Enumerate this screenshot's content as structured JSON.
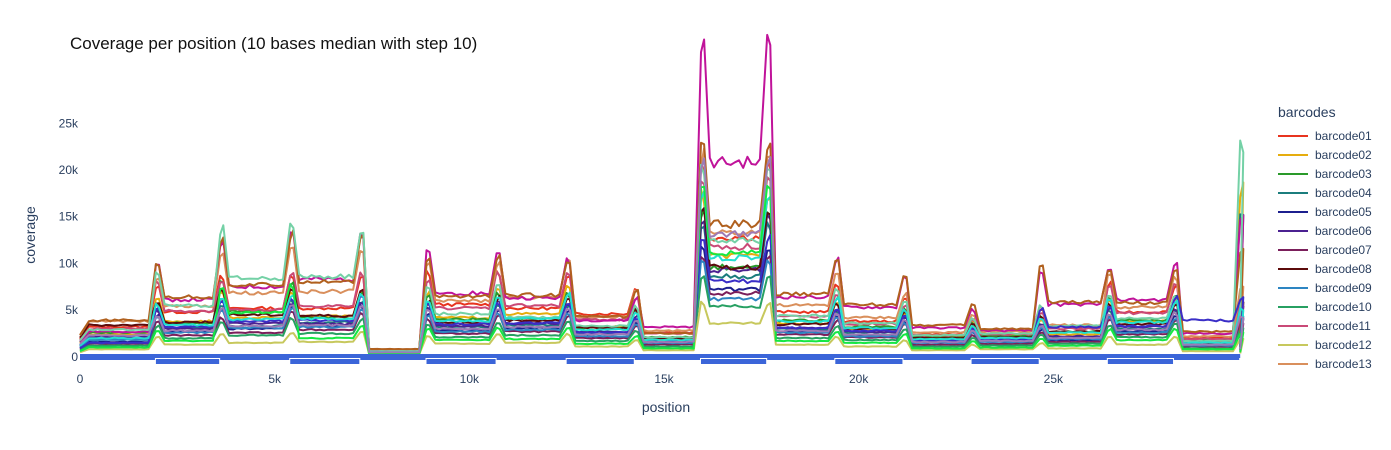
{
  "chart_data": {
    "type": "line",
    "title": "Coverage per position (10 bases median with step 10)",
    "xlabel": "position",
    "ylabel": "coverage",
    "xlim": [
      0,
      30000
    ],
    "ylim": [
      -1200,
      27500
    ],
    "x_ticks": [
      0,
      5000,
      10000,
      15000,
      20000,
      25000
    ],
    "x_tick_labels": [
      "0",
      "5k",
      "10k",
      "15k",
      "20k",
      "25k"
    ],
    "y_ticks": [
      0,
      5000,
      10000,
      15000,
      20000,
      25000
    ],
    "y_tick_labels": [
      "0",
      "5k",
      "10k",
      "15k",
      "20k",
      "25k"
    ],
    "legend_title": "barcodes",
    "legend_position": "right",
    "grid": false,
    "amplicon_breaks": [
      0,
      1950,
      3600,
      5400,
      7200,
      8900,
      10700,
      12500,
      14250,
      15950,
      17650,
      19400,
      21150,
      22900,
      24650,
      26400,
      28100,
      29800
    ],
    "series": [
      {
        "name": "barcode01",
        "color": "#e8341f",
        "segments": [
          3200,
          4800,
          5200,
          5200,
          700,
          5600,
          5200,
          4600,
          2600,
          12800,
          4800,
          3800,
          2400,
          2400,
          3200,
          4800,
          2000,
          3400
        ]
      },
      {
        "name": "barcode02",
        "color": "#e6ad0e",
        "segments": [
          2400,
          3800,
          4200,
          4300,
          600,
          4200,
          4600,
          3200,
          1900,
          10800,
          3600,
          2900,
          2200,
          2300,
          2400,
          3800,
          1600,
          11200
        ]
      },
      {
        "name": "barcode03",
        "color": "#2a9a2a",
        "segments": [
          2600,
          3600,
          4900,
          4200,
          650,
          4000,
          4100,
          3100,
          2100,
          9600,
          3900,
          3200,
          2100,
          2200,
          2700,
          3900,
          1800,
          3700
        ]
      },
      {
        "name": "barcode04",
        "color": "#1b7d7d",
        "segments": [
          1900,
          3100,
          3300,
          3700,
          500,
          3200,
          3400,
          2500,
          1700,
          8600,
          3000,
          2600,
          1700,
          1800,
          2100,
          3000,
          1400,
          9200
        ]
      },
      {
        "name": "barcode05",
        "color": "#1c1f8e",
        "segments": [
          1600,
          2700,
          3000,
          3300,
          450,
          2900,
          3100,
          2200,
          1500,
          7200,
          2700,
          2300,
          1500,
          1600,
          1800,
          2700,
          1200,
          2600
        ]
      },
      {
        "name": "barcode06",
        "color": "#4b2191",
        "segments": [
          2100,
          3000,
          3600,
          3500,
          500,
          3300,
          3600,
          2700,
          1800,
          9300,
          3100,
          2700,
          1800,
          1900,
          2200,
          3200,
          1500,
          3300
        ]
      },
      {
        "name": "barcode07",
        "color": "#7b1f5b",
        "segments": [
          1400,
          2300,
          2600,
          2900,
          400,
          2500,
          2700,
          2000,
          1300,
          6800,
          2400,
          2100,
          1300,
          1400,
          1600,
          2400,
          1100,
          2300
        ]
      },
      {
        "name": "barcode08",
        "color": "#5c0b0b",
        "segments": [
          3400,
          3700,
          4500,
          4400,
          650,
          3600,
          3900,
          3100,
          2000,
          9600,
          3500,
          3000,
          2000,
          2100,
          2700,
          3500,
          1500,
          3600
        ]
      },
      {
        "name": "barcode09",
        "color": "#2d85c2",
        "segments": [
          1800,
          2600,
          3100,
          3200,
          450,
          2700,
          2900,
          2200,
          1500,
          6200,
          2600,
          2200,
          1500,
          1600,
          1900,
          2600,
          1200,
          2800
        ]
      },
      {
        "name": "barcode10",
        "color": "#27a062",
        "segments": [
          1200,
          2000,
          2300,
          2500,
          380,
          2100,
          2300,
          1700,
          1100,
          5400,
          2000,
          1800,
          1100,
          1200,
          1400,
          2100,
          900,
          1900
        ]
      },
      {
        "name": "barcode11",
        "color": "#c94a77",
        "segments": [
          3000,
          4900,
          5000,
          5400,
          700,
          5200,
          5500,
          4000,
          2500,
          11800,
          4300,
          3500,
          2300,
          2400,
          3000,
          4700,
          1900,
          3800
        ]
      },
      {
        "name": "barcode12",
        "color": "#c7c85d",
        "segments": [
          800,
          1300,
          1500,
          1600,
          250,
          1400,
          1500,
          1100,
          700,
          3600,
          1300,
          1100,
          700,
          800,
          900,
          1300,
          600,
          1200
        ]
      },
      {
        "name": "barcode13",
        "color": "#d98f5c",
        "segments": [
          3800,
          5400,
          6800,
          7000,
          800,
          6000,
          6300,
          4300,
          2800,
          13400,
          5500,
          4200,
          2600,
          2700,
          3400,
          5300,
          2200,
          4500
        ]
      },
      {
        "name": "",
        "color": "#c0139a",
        "segments": [
          2700,
          6100,
          7500,
          8300,
          650,
          6800,
          6300,
          3900,
          3200,
          20800,
          6400,
          5300,
          3100,
          2800,
          5600,
          6100,
          2500,
          9600
        ]
      },
      {
        "name": "",
        "color": "#b0601e",
        "segments": [
          3900,
          6400,
          7700,
          8100,
          820,
          6500,
          6600,
          4300,
          2500,
          14200,
          6700,
          5600,
          3400,
          3000,
          5900,
          5800,
          2700,
          7000
        ]
      },
      {
        "name": "",
        "color": "#74d1a6",
        "segments": [
          2900,
          5500,
          8400,
          8600,
          600,
          4600,
          4200,
          3300,
          2100,
          12400,
          4400,
          3600,
          2300,
          2500,
          3300,
          4100,
          1700,
          14000
        ]
      },
      {
        "name": "",
        "color": "#3a2ec7",
        "segments": [
          1500,
          3200,
          3800,
          3900,
          450,
          3500,
          3600,
          2600,
          1600,
          8100,
          3100,
          2800,
          1700,
          1800,
          3200,
          3300,
          3900,
          3800
        ]
      },
      {
        "name": "",
        "color": "#22e0d0",
        "segments": [
          2000,
          3400,
          4000,
          4100,
          500,
          3800,
          4100,
          2900,
          1800,
          10600,
          3800,
          3100,
          1900,
          2000,
          2600,
          3700,
          1500,
          3200
        ]
      },
      {
        "name": "",
        "color": "#15e842",
        "segments": [
          1000,
          1700,
          4700,
          2000,
          300,
          1800,
          1900,
          1400,
          900,
          11100,
          1700,
          1500,
          900,
          1000,
          1200,
          1800,
          800,
          1600
        ]
      },
      {
        "name": "",
        "color": "#9e7ab5",
        "segments": [
          2300,
          2800,
          3300,
          3400,
          480,
          3000,
          3200,
          2400,
          1600,
          13200,
          2800,
          2400,
          1600,
          1700,
          2000,
          2900,
          1300,
          2700
        ]
      }
    ]
  }
}
